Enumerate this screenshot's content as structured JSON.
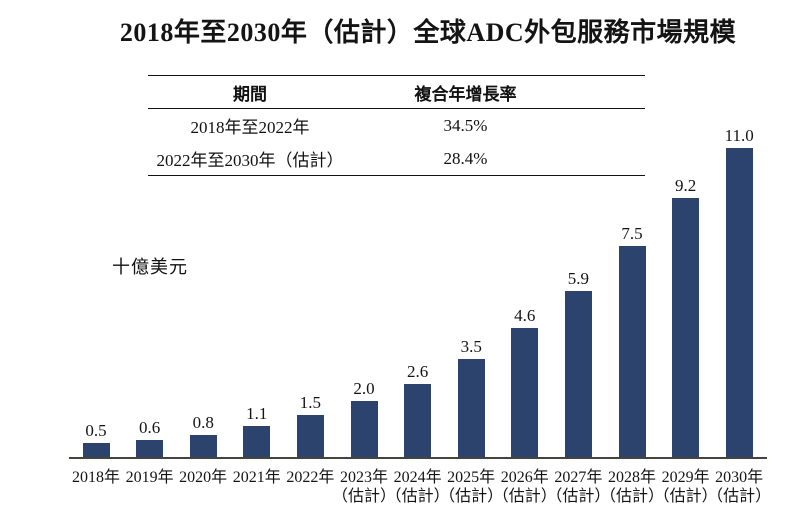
{
  "title": "2018年至2030年（估計）全球ADC外包服務市場規模",
  "table": {
    "headers": [
      "期間",
      "複合年增長率"
    ],
    "rows": [
      [
        "2018年至2022年",
        "34.5%"
      ],
      [
        "2022年至2030年（估計）",
        "28.4%"
      ]
    ]
  },
  "chart_data": {
    "type": "bar",
    "title": "2018年至2030年（估計）全球ADC外包服務市場規模",
    "ylabel": "十億美元",
    "categories": [
      "2018年",
      "2019年",
      "2020年",
      "2021年",
      "2022年",
      "2023年",
      "2024年",
      "2025年",
      "2026年",
      "2027年",
      "2028年",
      "2029年",
      "2030年"
    ],
    "estimate_suffix": "（估計）",
    "estimate_start_index": 5,
    "values": [
      0.5,
      0.6,
      0.8,
      1.1,
      1.5,
      2.0,
      2.6,
      3.5,
      4.6,
      5.9,
      7.5,
      9.2,
      11.0
    ],
    "ylim": [
      0,
      11
    ],
    "bar_color": "#2B436D",
    "grid": false,
    "legend": "none",
    "value_labels": "above-bars"
  }
}
